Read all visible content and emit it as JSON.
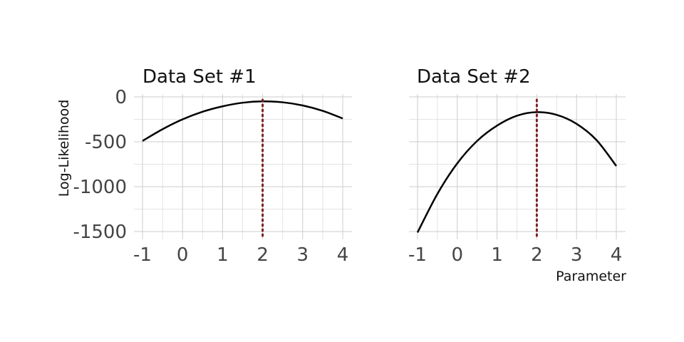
{
  "chart_data": {
    "type": "line",
    "ylabel": "Log-Likelihood",
    "xlabel": "Parameter",
    "xlim": [
      -1,
      4
    ],
    "ylim": [
      -1500,
      0
    ],
    "x_ticks": [
      -1,
      0,
      1,
      2,
      3,
      4
    ],
    "y_ticks": [
      0,
      -500,
      -1000,
      -1500
    ],
    "grid": true,
    "panels": [
      {
        "title": "Data Set #1",
        "series_color": "#000000",
        "x": [
          -1,
          -0.5,
          0,
          0.5,
          1,
          1.5,
          2,
          2.5,
          3,
          3.5,
          4
        ],
        "y": [
          -490,
          -360,
          -250,
          -165,
          -105,
          -65,
          -50,
          -60,
          -95,
          -155,
          -240
        ],
        "reference_x": 2,
        "reference_color": "#7b1f1f"
      },
      {
        "title": "Data Set #2",
        "series_color": "#000000",
        "x": [
          -1,
          -0.5,
          0,
          0.5,
          1,
          1.5,
          2,
          2.5,
          3,
          3.5,
          4
        ],
        "y": [
          -1510,
          -1080,
          -740,
          -490,
          -320,
          -210,
          -170,
          -200,
          -300,
          -480,
          -770
        ],
        "reference_x": 2,
        "reference_color": "#7b1f1f"
      }
    ]
  }
}
